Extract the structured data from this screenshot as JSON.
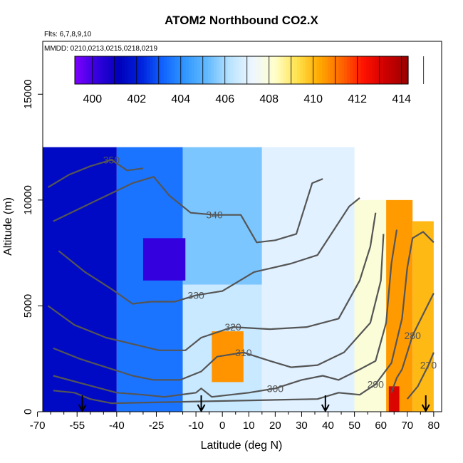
{
  "chart_data": {
    "type": "heatmap",
    "title": "ATOM2 Northbound CO2.X",
    "subtitle_flights": "Flts: 6,7,8,9,10",
    "subtitle_dates": "MMDD: 0210,0213,0215,0218,0219",
    "xlabel": "Latitude (deg N)",
    "ylabel": "Altitude (m)",
    "xlim": [
      -68,
      83
    ],
    "ylim": [
      0,
      17500
    ],
    "x_ticks": [
      -70,
      -55,
      -40,
      -25,
      -10,
      0,
      10,
      20,
      30,
      40,
      50,
      60,
      70,
      80
    ],
    "y_ticks": [
      0,
      5000,
      10000,
      15000
    ],
    "colorbar": {
      "ticks": [
        400,
        402,
        404,
        406,
        408,
        410,
        412,
        414
      ],
      "range": [
        399.2,
        414.3
      ],
      "colors": [
        "#7f00ff",
        "#3300dd",
        "#0000bb",
        "#0022dd",
        "#1166ff",
        "#3399ff",
        "#66bbff",
        "#bbe4ff",
        "#eef6ff",
        "#ffffcc",
        "#ffe24d",
        "#ffaa00",
        "#ff6600",
        "#ff1100",
        "#cc0000",
        "#990000"
      ]
    },
    "field_regions": [
      {
        "lat": [
          -68,
          -40
        ],
        "alt": [
          0,
          12500
        ],
        "co2": 401.5
      },
      {
        "lat": [
          -40,
          -15
        ],
        "alt": [
          0,
          12500
        ],
        "co2": 403.5
      },
      {
        "lat": [
          -15,
          15
        ],
        "alt": [
          6000,
          12500
        ],
        "co2": 405.5
      },
      {
        "lat": [
          -15,
          15
        ],
        "alt": [
          0,
          6000
        ],
        "co2": 406.5
      },
      {
        "lat": [
          15,
          50
        ],
        "alt": [
          0,
          12500
        ],
        "co2": 407.0
      },
      {
        "lat": [
          50,
          62
        ],
        "alt": [
          0,
          10000
        ],
        "co2": 408.0
      },
      {
        "lat": [
          62,
          72
        ],
        "alt": [
          0,
          10000
        ],
        "co2": 410.5
      },
      {
        "lat": [
          72,
          80
        ],
        "alt": [
          0,
          9000
        ],
        "co2": 410.0
      }
    ],
    "field_anomalies": [
      {
        "lat": [
          -30,
          -14
        ],
        "alt": [
          6200,
          8200
        ],
        "co2": 400.2
      },
      {
        "lat": [
          -4,
          8
        ],
        "alt": [
          1400,
          3800
        ],
        "co2": 410.6
      },
      {
        "lat": [
          63,
          67
        ],
        "alt": [
          0,
          1200
        ],
        "co2": 413.0
      }
    ],
    "contours": [
      {
        "label": "350",
        "points": [
          [
            -66,
            10600
          ],
          [
            -58,
            11200
          ],
          [
            -50,
            11600
          ],
          [
            -42,
            11900
          ],
          [
            -36,
            11400
          ],
          [
            -30,
            11500
          ]
        ]
      },
      {
        "label": "340",
        "points": [
          [
            -64,
            9000
          ],
          [
            -54,
            9600
          ],
          [
            -44,
            10200
          ],
          [
            -34,
            10800
          ],
          [
            -26,
            11100
          ],
          [
            -20,
            10200
          ],
          [
            -12,
            9400
          ],
          [
            -3,
            9300
          ],
          [
            7,
            9300
          ],
          [
            13,
            8000
          ],
          [
            20,
            8100
          ],
          [
            28,
            8400
          ],
          [
            34,
            10800
          ],
          [
            38,
            11000
          ]
        ]
      },
      {
        "label": "330",
        "points": [
          [
            -62,
            7600
          ],
          [
            -52,
            6600
          ],
          [
            -42,
            5800
          ],
          [
            -34,
            5100
          ],
          [
            -27,
            5200
          ],
          [
            -18,
            5200
          ],
          [
            -10,
            5500
          ],
          [
            0,
            5700
          ],
          [
            12,
            6600
          ],
          [
            26,
            7000
          ],
          [
            36,
            7400
          ],
          [
            48,
            9700
          ],
          [
            52,
            10100
          ]
        ]
      },
      {
        "label": "320",
        "points": [
          [
            -66,
            5000
          ],
          [
            -56,
            4100
          ],
          [
            -44,
            3500
          ],
          [
            -34,
            3200
          ],
          [
            -24,
            2900
          ],
          [
            -14,
            2900
          ],
          [
            -8,
            3500
          ],
          [
            4,
            4000
          ],
          [
            18,
            3900
          ],
          [
            32,
            4000
          ],
          [
            44,
            4400
          ],
          [
            52,
            6200
          ],
          [
            56,
            7800
          ],
          [
            58,
            9400
          ]
        ]
      },
      {
        "label": "310",
        "points": [
          [
            -64,
            3000
          ],
          [
            -54,
            2500
          ],
          [
            -44,
            2100
          ],
          [
            -34,
            1700
          ],
          [
            -26,
            1500
          ],
          [
            -16,
            1500
          ],
          [
            -8,
            1900
          ],
          [
            -2,
            2600
          ],
          [
            8,
            2800
          ],
          [
            18,
            2400
          ],
          [
            26,
            2100
          ],
          [
            36,
            2200
          ],
          [
            46,
            2800
          ],
          [
            56,
            4200
          ],
          [
            60,
            6200
          ],
          [
            61,
            8400
          ]
        ]
      },
      {
        "label": "300",
        "points": [
          [
            -64,
            1700
          ],
          [
            -52,
            1300
          ],
          [
            -40,
            900
          ],
          [
            -30,
            800
          ],
          [
            -22,
            700
          ],
          [
            -10,
            900
          ],
          [
            -8,
            1100
          ],
          [
            -4,
            700
          ],
          [
            10,
            900
          ],
          [
            20,
            1100
          ],
          [
            30,
            1500
          ],
          [
            38,
            1700
          ],
          [
            44,
            1500
          ],
          [
            52,
            2000
          ],
          [
            58,
            2400
          ],
          [
            62,
            4200
          ],
          [
            64,
            7000
          ],
          [
            66,
            8600
          ]
        ]
      },
      {
        "label": "290",
        "points": [
          [
            -64,
            1000
          ],
          [
            -56,
            900
          ],
          [
            -50,
            600
          ],
          [
            -42,
            400
          ],
          [
            36,
            600
          ],
          [
            44,
            900
          ],
          [
            52,
            800
          ],
          [
            58,
            1300
          ],
          [
            64,
            2300
          ],
          [
            68,
            4400
          ],
          [
            70,
            6800
          ],
          [
            72,
            8200
          ],
          [
            76,
            8500
          ],
          [
            80,
            8000
          ]
        ]
      },
      {
        "label": "280",
        "points": [
          [
            64,
            900
          ],
          [
            66,
            1600
          ],
          [
            68,
            2000
          ],
          [
            72,
            3600
          ],
          [
            76,
            4600
          ],
          [
            80,
            5600
          ]
        ]
      },
      {
        "label": "270",
        "points": [
          [
            70,
            600
          ],
          [
            74,
            1200
          ],
          [
            78,
            2200
          ],
          [
            80,
            2800
          ]
        ]
      }
    ],
    "arrows_lat": [
      -53,
      -8,
      39,
      77
    ]
  }
}
